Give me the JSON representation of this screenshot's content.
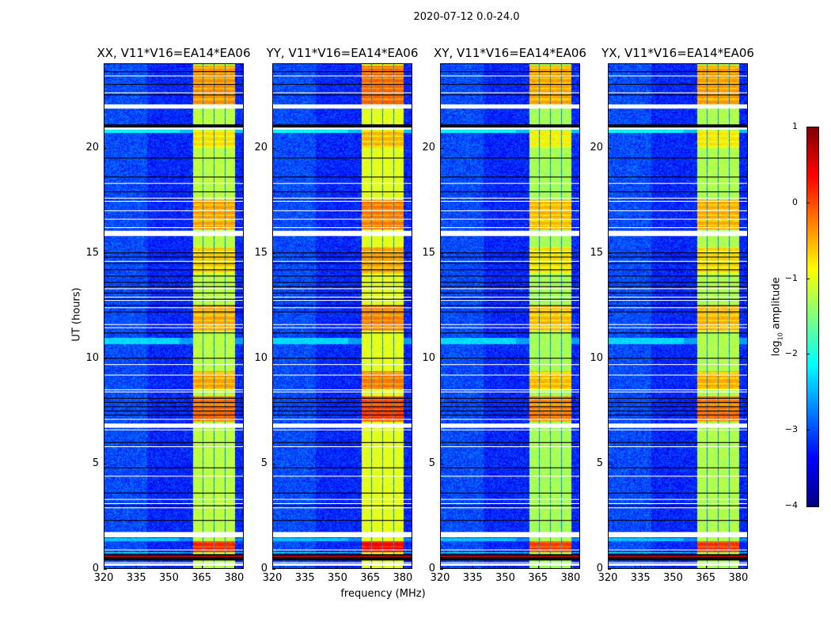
{
  "chart_data": {
    "type": "heatmap",
    "suptitle": "2020-07-12 0.0-24.0",
    "xlabel": "frequency (MHz)",
    "ylabel": "UT (hours)",
    "xlim": [
      320,
      384.4
    ],
    "ylim": [
      0,
      24
    ],
    "xticks": [
      "320",
      "335",
      "350",
      "365",
      "380"
    ],
    "xtick_values": [
      320,
      335,
      350,
      365,
      380
    ],
    "yticks": [
      "0",
      "5",
      "10",
      "15",
      "20"
    ],
    "ytick_values": [
      0,
      5,
      10,
      15,
      20
    ],
    "panels": [
      {
        "title": "XX, V11*V16=EA14*EA06",
        "rfi_offset": 0.0
      },
      {
        "title": "YY, V11*V16=EA14*EA06",
        "rfi_offset": 0.2
      },
      {
        "title": "XY, V11*V16=EA14*EA06",
        "rfi_offset": -0.1
      },
      {
        "title": "YX, V11*V16=EA14*EA06",
        "rfi_offset": -0.05
      }
    ],
    "background_log_amplitude": -3.1,
    "rfi_subbands_mhz": [
      [
        361,
        365.5
      ],
      [
        366,
        370.5
      ],
      [
        371,
        375.5
      ],
      [
        376,
        380.5
      ]
    ],
    "rfi_base_log_amplitude": -1.2,
    "rfi_bright_intervals_hours": [
      {
        "t": [
          21.9,
          23.9
        ],
        "level": -0.3
      },
      {
        "t": [
          20.0,
          20.8
        ],
        "level": -0.7
      },
      {
        "t": [
          16.1,
          17.5
        ],
        "level": -0.4
      },
      {
        "t": [
          14.0,
          15.3
        ],
        "level": -0.6
      },
      {
        "t": [
          11.3,
          12.5
        ],
        "level": -0.4
      },
      {
        "t": [
          8.5,
          9.4
        ],
        "level": -0.4
      },
      {
        "t": [
          7.0,
          8.2
        ],
        "level": -0.1
      },
      {
        "t": [
          0.8,
          1.3
        ],
        "level": 0.2
      }
    ],
    "elevated_background_hours": [
      {
        "t": [
          10.65,
          10.95
        ],
        "level": -2.3
      },
      {
        "t": [
          20.7,
          20.85
        ],
        "level": -2.1
      },
      {
        "t": [
          1.3,
          1.45
        ],
        "level": -2.4
      },
      {
        "t": [
          0.75,
          0.8
        ],
        "level": -2.0
      }
    ],
    "flagged_white_hours": [
      [
        21.85,
        22.05
      ],
      [
        20.85,
        20.95
      ],
      [
        15.8,
        16.05
      ],
      [
        6.7,
        6.9
      ],
      [
        1.5,
        1.75
      ],
      [
        0.15,
        0.25
      ]
    ],
    "flagged_white_lines_hours": [
      23.4,
      22.6,
      18.3,
      17.6,
      17.45,
      17.0,
      16.6,
      16.2,
      14.6,
      13.3,
      12.9,
      12.75,
      12.4,
      11.6,
      11.45,
      9.7,
      9.2,
      8.5,
      8.4,
      7.1,
      6.6,
      5.8,
      4.4,
      3.3,
      3.1,
      2.9,
      0.9,
      0.3
    ],
    "dark_band_hours": [
      [
        0.4,
        0.7
      ],
      [
        20.95,
        21.1
      ]
    ],
    "dark_lines_hours": [
      23.6,
      23.0,
      22.5,
      19.5,
      18.6,
      17.9,
      15.0,
      14.8,
      14.5,
      14.2,
      13.9,
      13.6,
      13.4,
      13.1,
      12.8,
      12.5,
      12.2,
      11.2,
      10.0,
      8.1,
      7.9,
      7.7,
      7.5,
      7.3,
      6.0,
      4.8,
      3.6,
      3.0,
      2.3
    ],
    "strong_line": {
      "t": 0.6,
      "level": 0.6
    },
    "colorbar": {
      "label": "log10 amplitude",
      "range": [
        -4,
        1
      ],
      "ticks": [
        "1",
        "0",
        "−1",
        "−2",
        "−3",
        "−4"
      ],
      "tick_values": [
        1,
        0,
        -1,
        -2,
        -3,
        -4
      ],
      "colormap": "jet"
    }
  }
}
